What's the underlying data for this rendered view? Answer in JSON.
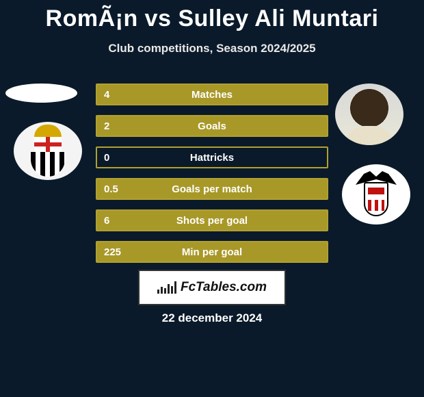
{
  "title": "RomÃ¡n vs Sulley Ali Muntari",
  "subtitle": "Club competitions, Season 2024/2025",
  "date": "22 december 2024",
  "badge_text": "FcTables.com",
  "colors": {
    "background": "#0a1a2a",
    "bar_border": "#b0a030",
    "bar_fill": "#a89828",
    "text": "#ffffff"
  },
  "stats": [
    {
      "label": "Matches",
      "left_value": "4",
      "left_fill_pct": 100
    },
    {
      "label": "Goals",
      "left_value": "2",
      "left_fill_pct": 100
    },
    {
      "label": "Hattricks",
      "left_value": "0",
      "left_fill_pct": 0
    },
    {
      "label": "Goals per match",
      "left_value": "0.5",
      "left_fill_pct": 100
    },
    {
      "label": "Shots per goal",
      "left_value": "6",
      "left_fill_pct": 100
    },
    {
      "label": "Min per goal",
      "left_value": "225",
      "left_fill_pct": 100
    }
  ],
  "left_player": {
    "name": "RomÃ¡n",
    "club_hint": "striped-black-white-cross-crest"
  },
  "right_player": {
    "name": "Sulley Ali Muntari",
    "club_hint": "albacete-bat-shield"
  }
}
